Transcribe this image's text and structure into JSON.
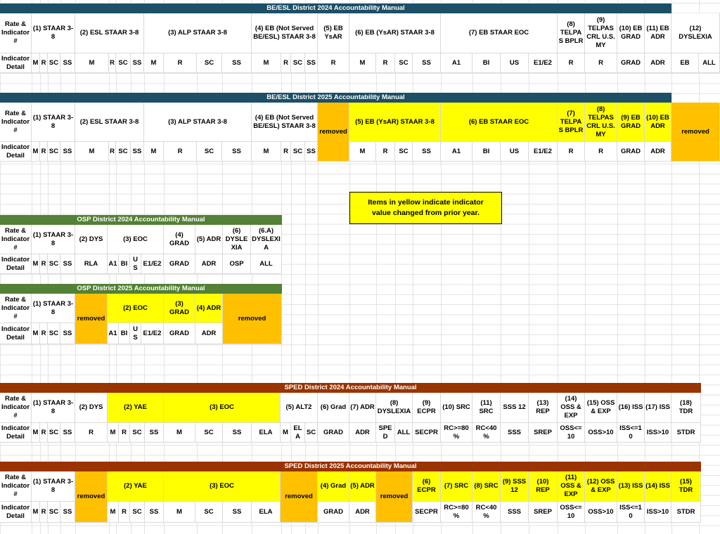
{
  "note": "Items in yellow indicate indicator value changed from prior year.",
  "sections": [
    {
      "title": "BE/ESL District 2024 Accountability Manual",
      "color": "#1d4f66",
      "row_labels": [
        "Rate & Indicator #",
        "Indicator Detail"
      ],
      "groups": [
        {
          "label": "(1) STAAR 3-8",
          "details": [
            "M",
            "R",
            "SC",
            "SS"
          ]
        },
        {
          "label": "(2) ESL STAAR 3-8",
          "details": [
            "M",
            "R",
            "SC",
            "SS"
          ]
        },
        {
          "label": "(3) ALP STAAR 3-8",
          "details": [
            "M",
            "R",
            "SC",
            "SS"
          ]
        },
        {
          "label": "(4) EB (Not Served BE/ESL) STAAR 3-8",
          "details": [
            "M",
            "R",
            "SC",
            "SS"
          ]
        },
        {
          "label": "(5) EB YsAR",
          "details": [
            "R"
          ]
        },
        {
          "label": "(6) EB (YsAR) STAAR 3-8",
          "details": [
            "M",
            "R",
            "SC",
            "SS"
          ]
        },
        {
          "label": "(7) EB STAAR EOC",
          "details": [
            "A1",
            "BI",
            "US",
            "E1/E2"
          ]
        },
        {
          "label": "(8) TELPAS BPLR",
          "details": [
            "R"
          ]
        },
        {
          "label": "(9) TELPAS CRL U.S. MY",
          "details": [
            "R"
          ]
        },
        {
          "label": "(10) EB GRAD",
          "details": [
            "GRAD"
          ]
        },
        {
          "label": "(11) EB ADR",
          "details": [
            "ADR"
          ]
        },
        {
          "label": "(12) DYSLEXIA",
          "details": [
            "EB",
            "ALL"
          ]
        }
      ]
    },
    {
      "title": "BE/ESL District 2025 Accountability Manual",
      "color": "#1d4f66",
      "row_labels": [
        "Rate & Indicator #",
        "Indicator Detail"
      ],
      "groups": [
        {
          "label": "(1) STAAR 3-8",
          "details": [
            "M",
            "R",
            "SC",
            "SS"
          ]
        },
        {
          "label": "(2) ESL STAAR 3-8",
          "details": [
            "M",
            "R",
            "SC",
            "SS"
          ]
        },
        {
          "label": "(3) ALP STAAR 3-8",
          "details": [
            "M",
            "R",
            "SC",
            "SS"
          ]
        },
        {
          "label": "(4) EB (Not Served BE/ESL) STAAR 3-8",
          "details": [
            "M",
            "R",
            "SC",
            "SS"
          ]
        },
        {
          "label": "removed",
          "details": [],
          "status": "removed"
        },
        {
          "label": "(5) EB (YsAR) STAAR 3-8",
          "details": [
            "M",
            "R",
            "SC",
            "SS"
          ],
          "status": "changed"
        },
        {
          "label": "(6) EB STAAR EOC",
          "details": [
            "A1",
            "BI",
            "US",
            "E1/E2"
          ],
          "status": "changed"
        },
        {
          "label": "(7) TELPAS BPLR",
          "details": [
            "R"
          ],
          "status": "changed"
        },
        {
          "label": "(8) TELPAS CRL U.S. MY",
          "details": [
            "R"
          ],
          "status": "changed"
        },
        {
          "label": "(9) EB GRAD",
          "details": [
            "GRAD"
          ],
          "status": "changed"
        },
        {
          "label": "(10) EB ADR",
          "details": [
            "ADR"
          ],
          "status": "changed"
        },
        {
          "label": "removed",
          "details": [],
          "status": "removed"
        }
      ]
    },
    {
      "title": "OSP District 2024 Accountability Manual",
      "color": "#538135",
      "row_labels": [
        "Rate & Indicator #",
        "Indicator Detail"
      ],
      "groups": [
        {
          "label": "(1) STAAR 3-8",
          "details": [
            "M",
            "R",
            "SC",
            "SS"
          ]
        },
        {
          "label": "(2) DYS",
          "details": [
            "RLA"
          ]
        },
        {
          "label": "(3) EOC",
          "details": [
            "A1",
            "BI",
            "US",
            "E1/E2"
          ]
        },
        {
          "label": "(4) GRAD",
          "details": [
            "GRAD"
          ]
        },
        {
          "label": "(5) ADR",
          "details": [
            "ADR"
          ]
        },
        {
          "label": "(6) DYSLEXIA",
          "details": [
            "OSP"
          ]
        },
        {
          "label": "(6.A) DYSLEXIA",
          "details": [
            "ALL"
          ]
        }
      ]
    },
    {
      "title": "OSP District 2025 Accountability Manual",
      "color": "#538135",
      "row_labels": [
        "Rate & Indicator #",
        "Indicator Detail"
      ],
      "groups": [
        {
          "label": "(1) STAAR 3-8",
          "details": [
            "M",
            "R",
            "SC",
            "SS"
          ]
        },
        {
          "label": "removed",
          "details": [],
          "status": "removed"
        },
        {
          "label": "(2) EOC",
          "details": [
            "A1",
            "BI",
            "US",
            "E1/E2"
          ],
          "status": "changed"
        },
        {
          "label": "(3) GRAD",
          "details": [
            "GRAD"
          ],
          "status": "changed"
        },
        {
          "label": "(4) ADR",
          "details": [
            "ADR"
          ],
          "status": "changed"
        },
        {
          "label": "removed",
          "details": [],
          "status": "removed"
        }
      ]
    },
    {
      "title": "SPED District 2024 Accountability Manual",
      "color": "#993300",
      "row_labels": [
        "Rate & Indicator #",
        "Indicator Detail"
      ],
      "groups": [
        {
          "label": "(1) STAAR 3-8",
          "details": [
            "M",
            "R",
            "SC",
            "SS"
          ]
        },
        {
          "label": "(2) DYS",
          "details": [
            "R"
          ]
        },
        {
          "label": "(2) YAE",
          "details": [
            "M",
            "R",
            "SC",
            "SS"
          ],
          "status": "changed"
        },
        {
          "label": "(3) EOC",
          "details": [
            "M",
            "SC",
            "SS",
            "ELA"
          ],
          "status": "changed"
        },
        {
          "label": "(5) ALT2",
          "details": [
            "M",
            "ELA",
            "SC"
          ]
        },
        {
          "label": "(6) Grad",
          "details": [
            "GRAD"
          ]
        },
        {
          "label": "(7) ADR",
          "details": [
            "ADR"
          ]
        },
        {
          "label": "(8) DYSLEXIA",
          "details": [
            "SPED",
            "ALL"
          ]
        },
        {
          "label": "(9) ECPR",
          "details": [
            "SECPR"
          ]
        },
        {
          "label": "(10) SRC",
          "details": [
            "RC>=80%"
          ]
        },
        {
          "label": "(11) SRC",
          "details": [
            "RC<40%"
          ]
        },
        {
          "label": "SSS 12",
          "details": [
            "SSS"
          ]
        },
        {
          "label": "(13) REP",
          "details": [
            "SREP"
          ]
        },
        {
          "label": "(14) OSS & EXP",
          "details": [
            "OSS<=10"
          ]
        },
        {
          "label": "(15) OSS & EXP",
          "details": [
            "OSS>10"
          ]
        },
        {
          "label": "(16) ISS",
          "details": [
            "ISS<=10"
          ]
        },
        {
          "label": "(17) ISS",
          "details": [
            "ISS>10"
          ]
        },
        {
          "label": "(18) TDR",
          "details": [
            "STDR"
          ]
        }
      ]
    },
    {
      "title": "SPED District 2025 Accountability Manual",
      "color": "#993300",
      "row_labels": [
        "Rate & Indicator #",
        "Indicator Detail"
      ],
      "groups": [
        {
          "label": "(1) STAAR 3-8",
          "details": [
            "M",
            "R",
            "SC",
            "SS"
          ]
        },
        {
          "label": "removed",
          "details": [],
          "status": "removed"
        },
        {
          "label": "(2) YAE",
          "details": [
            "M",
            "R",
            "SC",
            "SS"
          ],
          "status": "changed"
        },
        {
          "label": "(3) EOC",
          "details": [
            "M",
            "SC",
            "SS",
            "ELA"
          ],
          "status": "changed"
        },
        {
          "label": "removed",
          "details": [],
          "status": "removed"
        },
        {
          "label": "(4) Grad",
          "details": [
            "GRAD"
          ],
          "status": "changed"
        },
        {
          "label": "(5) ADR",
          "details": [
            "ADR"
          ],
          "status": "changed"
        },
        {
          "label": "removed",
          "details": [],
          "status": "removed"
        },
        {
          "label": "(6) ECPR",
          "details": [
            "SECPR"
          ],
          "status": "changed"
        },
        {
          "label": "(7) SRC",
          "details": [
            "RC>=80%"
          ],
          "status": "changed"
        },
        {
          "label": "(8) SRC",
          "details": [
            "RC<40%"
          ],
          "status": "changed"
        },
        {
          "label": "(9) SSS 12",
          "details": [
            "SSS"
          ],
          "status": "changed"
        },
        {
          "label": "(10) REP",
          "details": [
            "SREP"
          ],
          "status": "changed"
        },
        {
          "label": "(11) OSS & EXP",
          "details": [
            "OSS<=10"
          ],
          "status": "changed"
        },
        {
          "label": "(12) OSS & EXP",
          "details": [
            "OSS>10"
          ],
          "status": "changed"
        },
        {
          "label": "(13) ISS",
          "details": [
            "ISS<=10"
          ],
          "status": "changed"
        },
        {
          "label": "(14) ISS",
          "details": [
            "ISS>10"
          ],
          "status": "changed"
        },
        {
          "label": "(15) TDR",
          "details": [
            "STDR"
          ],
          "status": "changed"
        }
      ]
    }
  ]
}
